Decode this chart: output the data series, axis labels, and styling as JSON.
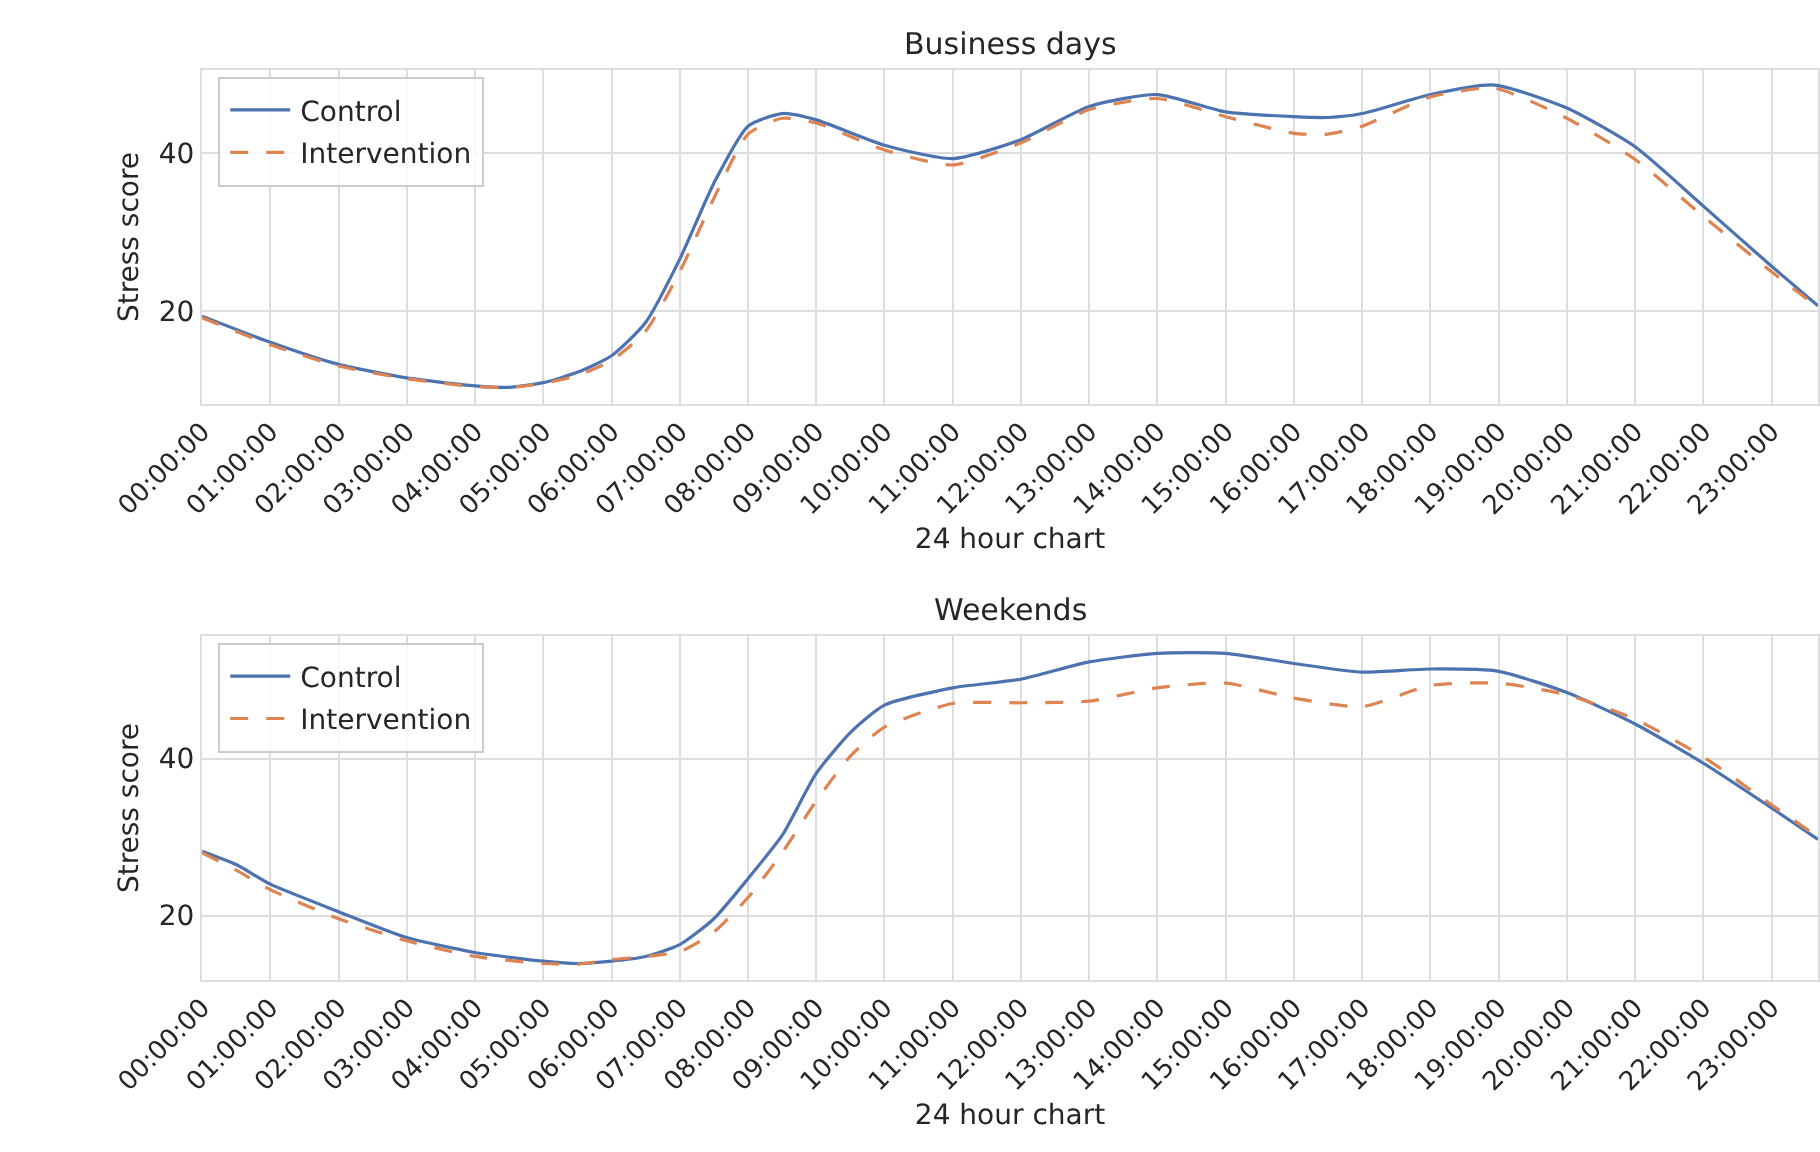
{
  "chart_data": [
    {
      "type": "line",
      "title": "Business days",
      "xlabel": "24 hour chart",
      "ylabel": "Stress score",
      "xlim": [
        0,
        23.68
      ],
      "ylim": [
        8.3,
        50.5
      ],
      "yticks": [
        20,
        40
      ],
      "xticks": [
        {
          "value": 0,
          "label": "00:00:00"
        },
        {
          "value": 1,
          "label": "01:00:00"
        },
        {
          "value": 2,
          "label": "02:00:00"
        },
        {
          "value": 3,
          "label": "03:00:00"
        },
        {
          "value": 4,
          "label": "04:00:00"
        },
        {
          "value": 5,
          "label": "05:00:00"
        },
        {
          "value": 6,
          "label": "06:00:00"
        },
        {
          "value": 7,
          "label": "07:00:00"
        },
        {
          "value": 8,
          "label": "08:00:00"
        },
        {
          "value": 9,
          "label": "09:00:00"
        },
        {
          "value": 10,
          "label": "10:00:00"
        },
        {
          "value": 11,
          "label": "11:00:00"
        },
        {
          "value": 12,
          "label": "12:00:00"
        },
        {
          "value": 13,
          "label": "13:00:00"
        },
        {
          "value": 14,
          "label": "14:00:00"
        },
        {
          "value": 15,
          "label": "15:00:00"
        },
        {
          "value": 16,
          "label": "16:00:00"
        },
        {
          "value": 17,
          "label": "17:00:00"
        },
        {
          "value": 18,
          "label": "18:00:00"
        },
        {
          "value": 19,
          "label": "19:00:00"
        },
        {
          "value": 20,
          "label": "20:00:00"
        },
        {
          "value": 21,
          "label": "21:00:00"
        },
        {
          "value": 22,
          "label": "22:00:00"
        },
        {
          "value": 23,
          "label": "23:00:00"
        }
      ],
      "x": [
        0,
        1,
        2,
        3,
        4,
        4.5,
        5,
        5.5,
        6,
        6.5,
        7,
        7.5,
        8,
        8.5,
        9,
        10,
        11,
        12,
        13,
        14,
        15,
        16,
        16.5,
        17,
        18,
        18.94,
        20,
        21,
        22,
        23,
        23.68
      ],
      "grid": true,
      "legend": "top left",
      "series": [
        {
          "name": "Control",
          "color": "#4c72b0",
          "line_style": "solid",
          "values": [
            19.4,
            16.1,
            13.3,
            11.6,
            10.6,
            10.4,
            11.0,
            12.3,
            14.4,
            18.6,
            26.6,
            36.2,
            43.4,
            45.0,
            44.2,
            41.0,
            39.3,
            41.7,
            45.9,
            47.4,
            45.2,
            44.6,
            44.5,
            45.0,
            47.4,
            48.6,
            45.7,
            40.8,
            33.3,
            25.7,
            20.7
          ]
        },
        {
          "name": "Intervention",
          "color": "#dd8452",
          "line_style": "dashed",
          "values": [
            19.2,
            15.8,
            13.1,
            11.5,
            10.5,
            10.4,
            10.9,
            11.9,
            13.8,
            17.5,
            25.0,
            34.3,
            42.4,
            44.4,
            43.8,
            40.4,
            38.5,
            41.3,
            45.5,
            46.9,
            44.6,
            42.5,
            42.4,
            43.4,
            47.1,
            48.2,
            44.4,
            39.2,
            32.0,
            25.0,
            20.5
          ]
        }
      ]
    },
    {
      "type": "line",
      "title": "Weekends",
      "xlabel": "24 hour chart",
      "ylabel": "Stress score",
      "xlim": [
        0,
        23.68
      ],
      "ylim": [
        11.8,
        55.6
      ],
      "yticks": [
        20,
        40
      ],
      "xticks": [
        {
          "value": 0,
          "label": "00:00:00"
        },
        {
          "value": 1,
          "label": "01:00:00"
        },
        {
          "value": 2,
          "label": "02:00:00"
        },
        {
          "value": 3,
          "label": "03:00:00"
        },
        {
          "value": 4,
          "label": "04:00:00"
        },
        {
          "value": 5,
          "label": "05:00:00"
        },
        {
          "value": 6,
          "label": "06:00:00"
        },
        {
          "value": 7,
          "label": "07:00:00"
        },
        {
          "value": 8,
          "label": "08:00:00"
        },
        {
          "value": 9,
          "label": "09:00:00"
        },
        {
          "value": 10,
          "label": "10:00:00"
        },
        {
          "value": 11,
          "label": "11:00:00"
        },
        {
          "value": 12,
          "label": "12:00:00"
        },
        {
          "value": 13,
          "label": "13:00:00"
        },
        {
          "value": 14,
          "label": "14:00:00"
        },
        {
          "value": 15,
          "label": "15:00:00"
        },
        {
          "value": 16,
          "label": "16:00:00"
        },
        {
          "value": 17,
          "label": "17:00:00"
        },
        {
          "value": 18,
          "label": "18:00:00"
        },
        {
          "value": 19,
          "label": "19:00:00"
        },
        {
          "value": 20,
          "label": "20:00:00"
        },
        {
          "value": 21,
          "label": "21:00:00"
        },
        {
          "value": 22,
          "label": "22:00:00"
        },
        {
          "value": 23,
          "label": "23:00:00"
        }
      ],
      "x": [
        0,
        0.5,
        1,
        2,
        3,
        4,
        5,
        5.5,
        6,
        6.5,
        7,
        7.5,
        8,
        8.5,
        9,
        9.5,
        10,
        11,
        12,
        13,
        14,
        15,
        16,
        17,
        18,
        19,
        20,
        21,
        22,
        23,
        23.68
      ],
      "grid": true,
      "legend": "top left",
      "series": [
        {
          "name": "Control",
          "color": "#4c72b0",
          "line_style": "solid",
          "values": [
            28.2,
            26.5,
            24.0,
            20.5,
            17.2,
            15.3,
            14.2,
            13.9,
            14.2,
            14.8,
            16.3,
            19.6,
            24.7,
            30.2,
            38.1,
            43.3,
            46.8,
            49.0,
            50.1,
            52.3,
            53.4,
            53.4,
            52.1,
            51.0,
            51.4,
            51.1,
            48.4,
            44.4,
            39.4,
            33.7,
            29.7
          ]
        },
        {
          "name": "Intervention",
          "color": "#dd8452",
          "line_style": "dashed",
          "values": [
            28.0,
            25.8,
            23.3,
            19.6,
            16.8,
            14.8,
            13.9,
            13.8,
            14.4,
            14.8,
            15.4,
            17.9,
            22.3,
            28.0,
            34.6,
            40.3,
            44.0,
            47.0,
            47.1,
            47.3,
            49.0,
            49.6,
            47.7,
            46.6,
            49.3,
            49.6,
            48.1,
            45.0,
            40.2,
            34.1,
            30.0
          ]
        }
      ]
    }
  ]
}
